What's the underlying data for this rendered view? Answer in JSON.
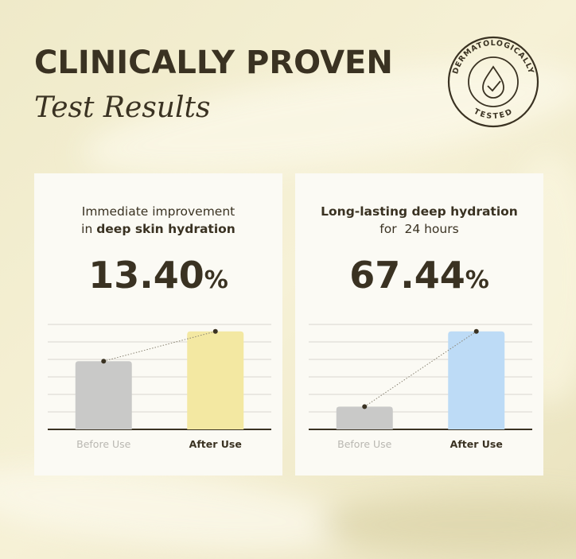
{
  "header": {
    "title": "CLINICALLY PROVEN",
    "subtitle": "Test Results"
  },
  "badge": {
    "top": "DERMATOLOGICALLY",
    "bottom": "TESTED"
  },
  "cards": [
    {
      "heading": [
        [
          {
            "text": "Immediate improvement",
            "bold": false
          }
        ],
        [
          {
            "text": "in ",
            "bold": false
          },
          {
            "text": "deep skin hydration",
            "bold": true
          }
        ]
      ],
      "stat": "13.40",
      "unit": "%",
      "chart": {
        "type": "bar",
        "categories": [
          "Before Use",
          "After Use"
        ],
        "values": [
          3.9,
          5.6
        ],
        "colors": [
          "#c9c9c8",
          "#f3e8a2"
        ],
        "ylim": [
          0,
          6
        ],
        "yticks": [
          0,
          1,
          2,
          3,
          4,
          5,
          6
        ],
        "grid": true
      }
    },
    {
      "heading": [
        [
          {
            "text": "Long-lasting deep hydration",
            "bold": true
          }
        ],
        [
          {
            "text": "for  24 hours",
            "bold": false
          }
        ]
      ],
      "stat": "67.44",
      "unit": "%",
      "chart": {
        "type": "bar",
        "categories": [
          "Before Use",
          "After Use"
        ],
        "values": [
          1.3,
          5.6
        ],
        "colors": [
          "#c9c9c8",
          "#bddbf6"
        ],
        "ylim": [
          0,
          6
        ],
        "yticks": [
          0,
          1,
          2,
          3,
          4,
          5,
          6
        ],
        "grid": true
      }
    }
  ]
}
